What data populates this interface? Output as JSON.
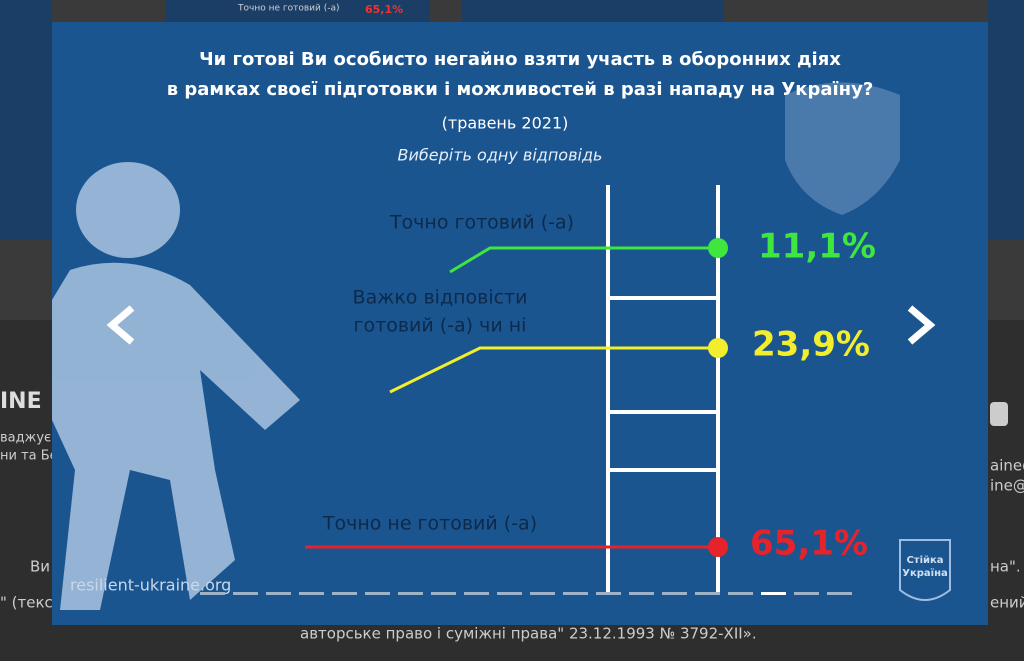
{
  "background": {
    "brand": "INE",
    "lines": [
      "ваджує",
      "ни та Бе"
    ],
    "footer_1": "Ви",
    "footer_2": "\" (текст",
    "footer_3": "авторське право і суміжні права\" 23.12.1993 № 3792-XII».",
    "footer_right": "на\".",
    "footer_right_2": "ений",
    "emails": [
      "aine@",
      "ine@"
    ],
    "thumb_label": "Точно не готовий (-а)",
    "thumb_value": "65,1%"
  },
  "slide": {
    "title_1": "Чи готові Ви особисто негайно взяти участь в оборонних діях",
    "title_2": "в рамках своєї підготовки і можливостей в разі нападу на Україну?",
    "date": "(травень 2021)",
    "instruction": "Виберіть одну відповідь",
    "answers": [
      {
        "label": [
          "Точно готовий (-а)"
        ],
        "value": "11,1%"
      },
      {
        "label": [
          "Важко відповісти",
          "готовий (-а) чи ні"
        ],
        "value": "23,9%"
      },
      {
        "label": [
          "Точно не готовий (-а)"
        ],
        "value": "65,1%"
      }
    ],
    "watermark": "resilient-ukraine.org",
    "logo": [
      "Стійка",
      "Україна"
    ]
  }
}
